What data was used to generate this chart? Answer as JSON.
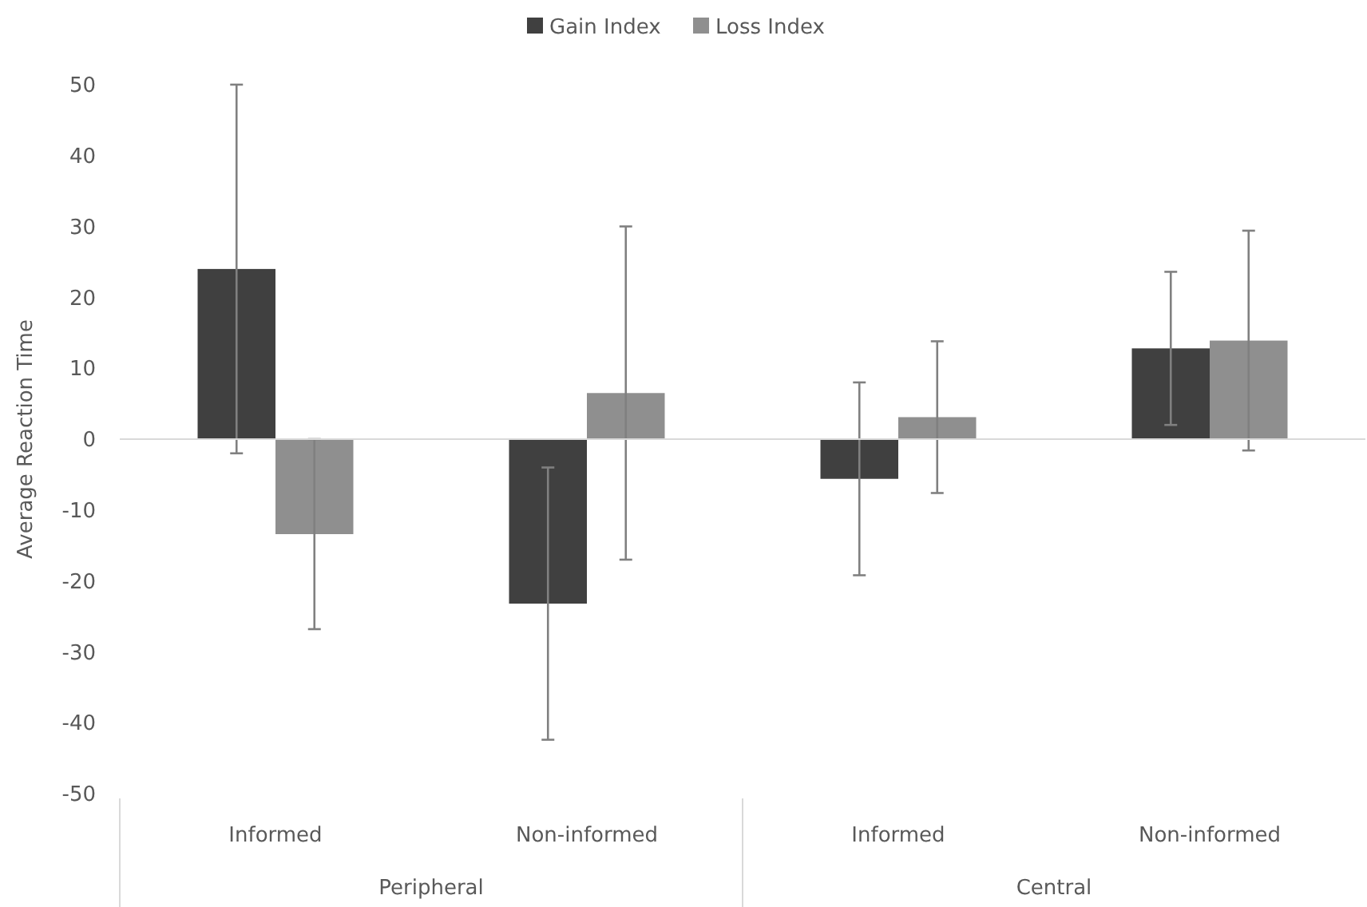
{
  "chart_data": {
    "type": "bar",
    "ylabel": "Average Reaction Time",
    "categories": [
      "Informed",
      "Non-informed",
      "Informed",
      "Non-informed"
    ],
    "series": [
      {
        "name": "Gain Index",
        "color": "#404040",
        "values": [
          24,
          -23.2,
          -5.6,
          12.8
        ],
        "errors": [
          26,
          19.2,
          13.6,
          10.8
        ]
      },
      {
        "name": "Loss Index",
        "color": "#8f8f8f",
        "values": [
          -13.4,
          6.5,
          3.1,
          13.9
        ],
        "errors": [
          13.4,
          23.5,
          10.7,
          15.5
        ]
      }
    ],
    "ylim": [
      -50,
      50
    ],
    "yticks": [
      -50,
      -40,
      -30,
      -20,
      -10,
      0,
      10,
      20,
      30,
      40,
      50
    ],
    "legend": "top",
    "annotations": [
      "Peripheral",
      "Central"
    ]
  }
}
